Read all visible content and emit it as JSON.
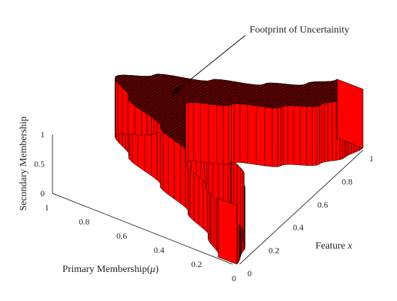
{
  "chart_data": {
    "type": "surface",
    "title": "",
    "annotation": {
      "text": "Footprint of Uncertainity",
      "arrow": true
    },
    "axes": {
      "x": {
        "label_prefix": "Feature ",
        "label_var": "x",
        "range": [
          0,
          1
        ],
        "ticks": [
          "0",
          "0.2",
          "0.4",
          "0.6",
          "0.8",
          "1"
        ]
      },
      "y": {
        "label_prefix": "Primary Membership(",
        "label_var": "μ",
        "label_suffix": ")",
        "range": [
          0,
          1
        ],
        "ticks": [
          "0",
          "0.2",
          "0.4",
          "0.6",
          "0.8",
          "1"
        ]
      },
      "z": {
        "label": "Secondary Membership",
        "range": [
          0,
          1
        ],
        "ticks": [
          "0",
          "0.5",
          "1"
        ]
      }
    },
    "surface": {
      "description_free": true,
      "x": [
        0,
        0.1,
        0.2,
        0.3,
        0.4,
        0.5,
        0.6,
        0.7,
        0.8,
        0.9,
        1.0
      ],
      "upper_membership": [
        0.1,
        0.22,
        0.4,
        0.62,
        0.86,
        1.0,
        0.86,
        0.62,
        0.4,
        0.24,
        0.14
      ],
      "lower_membership": [
        0.0,
        0.03,
        0.1,
        0.24,
        0.44,
        0.62,
        0.44,
        0.24,
        0.1,
        0.03,
        0.0
      ],
      "secondary_membership": 1,
      "color": "#ff0000",
      "edge_color": "#000000"
    },
    "grid": false,
    "legend": "none"
  }
}
